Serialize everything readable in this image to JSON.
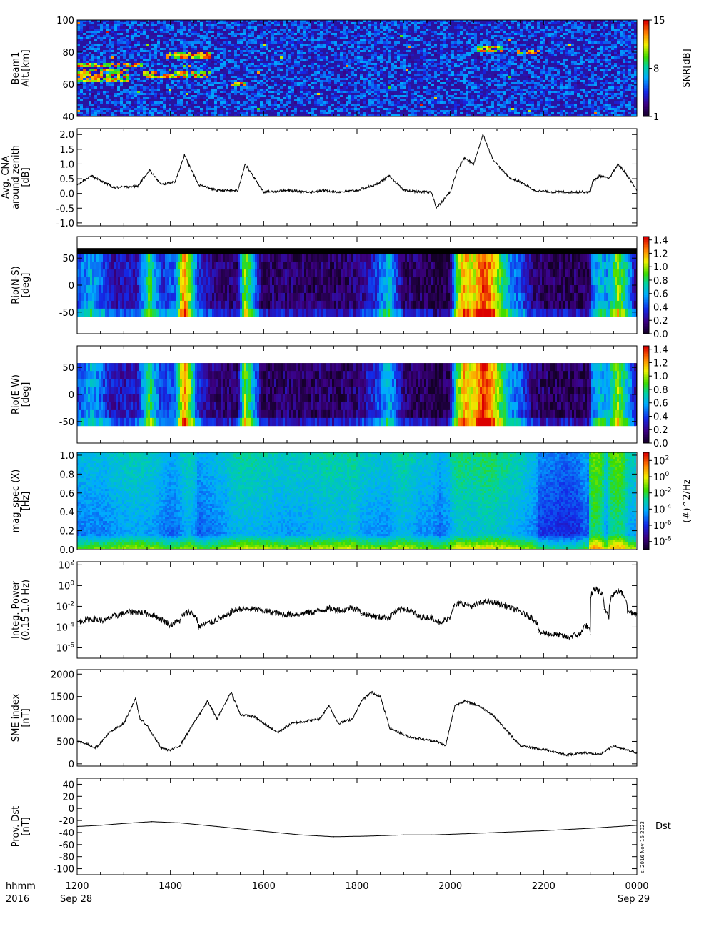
{
  "chart_data": [
    {
      "type": "heatmap",
      "ylabel_lines": [
        "Beam1",
        "Alt.[km]"
      ],
      "yticks": [
        "40",
        "60",
        "80",
        "100"
      ],
      "ylim": [
        40,
        100
      ],
      "colorbar": {
        "label": "SNR[dB]",
        "ticks": [
          "1",
          "8",
          "15"
        ],
        "range": [
          1,
          15
        ],
        "colormap": "rainbow"
      },
      "echo_layers": [
        {
          "t_start": 12.0,
          "t_end": 13.1,
          "alt_km": 63
        },
        {
          "t_start": 12.0,
          "t_end": 13.1,
          "alt_km": 67
        },
        {
          "t_start": 12.0,
          "t_end": 13.4,
          "alt_km": 72
        },
        {
          "t_start": 13.4,
          "t_end": 14.9,
          "alt_km": 66
        },
        {
          "t_start": 13.9,
          "t_end": 14.9,
          "alt_km": 78
        },
        {
          "t_start": 15.3,
          "t_end": 15.6,
          "alt_km": 60
        },
        {
          "t_start": 20.6,
          "t_end": 21.1,
          "alt_km": 82
        },
        {
          "t_start": 21.4,
          "t_end": 21.9,
          "alt_km": 80
        }
      ]
    },
    {
      "type": "line",
      "ylabel_lines": [
        "Avg. CNA",
        "around zenith",
        "[dB]"
      ],
      "yticks": [
        "-1.0",
        "-0.5",
        "0.0",
        "0.5",
        "1.0",
        "1.5",
        "2.0"
      ],
      "ylim": [
        -1.1,
        2.2
      ],
      "x": [
        12.0,
        12.3,
        12.8,
        13.3,
        13.55,
        13.8,
        14.1,
        14.3,
        14.6,
        15.0,
        15.3,
        15.45,
        15.6,
        16.0,
        16.5,
        17.0,
        17.3,
        17.6,
        18.0,
        18.4,
        18.7,
        19.0,
        19.4,
        19.6,
        19.7,
        20.0,
        20.15,
        20.3,
        20.5,
        20.7,
        20.9,
        21.1,
        21.3,
        21.5,
        21.8,
        22.2,
        22.6,
        23.0,
        23.05,
        23.2,
        23.4,
        23.6,
        23.8,
        24.0
      ],
      "y": [
        0.3,
        0.6,
        0.2,
        0.25,
        0.8,
        0.3,
        0.4,
        1.3,
        0.3,
        0.1,
        0.1,
        0.1,
        1.0,
        0.05,
        0.1,
        0.05,
        0.1,
        0.05,
        0.1,
        0.3,
        0.6,
        0.1,
        0.05,
        0.05,
        -0.5,
        0.05,
        0.8,
        1.2,
        1.0,
        2.0,
        1.2,
        0.8,
        0.5,
        0.4,
        0.1,
        0.05,
        0.05,
        0.05,
        0.4,
        0.6,
        0.5,
        1.0,
        0.6,
        0.1
      ]
    },
    {
      "type": "heatmap",
      "ylabel_lines": [
        "Rio(N-S)",
        "[deg]"
      ],
      "yticks": [
        "-50",
        "0",
        "50"
      ],
      "ylim": [
        -90,
        90
      ],
      "data_band": [
        -58,
        58
      ],
      "colorbar": {
        "ticks": [
          "0.0",
          "0.2",
          "0.4",
          "0.6",
          "0.8",
          "1.0",
          "1.2",
          "1.4"
        ],
        "range": [
          0,
          1.45
        ],
        "colormap": "rainbow-dark"
      },
      "x_profile": [
        12.0,
        12.3,
        12.8,
        13.3,
        13.55,
        13.8,
        14.1,
        14.3,
        14.6,
        15.0,
        15.3,
        15.45,
        15.6,
        16.0,
        16.5,
        17.0,
        17.3,
        17.6,
        18.0,
        18.4,
        18.7,
        19.0,
        19.4,
        19.6,
        19.7,
        20.0,
        20.15,
        20.3,
        20.5,
        20.7,
        20.9,
        21.1,
        21.3,
        21.5,
        21.8,
        22.2,
        22.6,
        23.0,
        23.05,
        23.2,
        23.4,
        23.6,
        23.8,
        24.0
      ],
      "intensity_profile": [
        0.4,
        0.6,
        0.25,
        0.3,
        0.85,
        0.35,
        0.45,
        1.3,
        0.35,
        0.15,
        0.15,
        0.15,
        1.0,
        0.1,
        0.15,
        0.1,
        0.15,
        0.1,
        0.15,
        0.35,
        0.65,
        0.15,
        0.1,
        0.1,
        0.0,
        0.1,
        0.85,
        1.2,
        1.05,
        1.4,
        1.2,
        0.85,
        0.55,
        0.45,
        0.15,
        0.1,
        0.1,
        0.1,
        0.45,
        0.65,
        0.55,
        1.0,
        0.65,
        0.2
      ]
    },
    {
      "type": "heatmap",
      "ylabel_lines": [
        "Rio(E-W)",
        "[deg]"
      ],
      "yticks": [
        "-50",
        "0",
        "50"
      ],
      "ylim": [
        -90,
        90
      ],
      "data_band": [
        -58,
        58
      ],
      "colorbar": {
        "ticks": [
          "0.0",
          "0.2",
          "0.4",
          "0.6",
          "0.8",
          "1.0",
          "1.2",
          "1.4"
        ],
        "range": [
          0,
          1.45
        ],
        "colormap": "rainbow-dark"
      }
    },
    {
      "type": "heatmap",
      "ylabel_lines": [
        "mag_spec (X)",
        "[Hz]"
      ],
      "yticks": [
        "0.0",
        "0.2",
        "0.4",
        "0.6",
        "0.8",
        "1.0"
      ],
      "ylim": [
        0,
        1.03
      ],
      "colorbar": {
        "label": "(#)^2/Hz",
        "ticks": [
          "10^-8",
          "10^-6",
          "10^-4",
          "10^-2",
          "10^0",
          "10^2"
        ],
        "tick_exponents": [
          -8,
          -6,
          -4,
          -2,
          0,
          2
        ],
        "range": [
          -9,
          3
        ],
        "colormap": "rainbow",
        "scale": "log"
      }
    },
    {
      "type": "line",
      "ylabel_lines": [
        "Integ. Power",
        "(0.15-1.0 Hz)"
      ],
      "yticks": [
        "10^-6",
        "10^-4",
        "10^-2",
        "10^0",
        "10^2"
      ],
      "tick_exponents": [
        -6,
        -4,
        -2,
        0,
        2
      ],
      "yscale": "log",
      "ylim_log10": [
        -7,
        2.3
      ],
      "x": [
        12.0,
        12.3,
        12.6,
        12.9,
        13.2,
        13.5,
        13.8,
        14.0,
        14.2,
        14.4,
        14.6,
        14.9,
        15.2,
        15.5,
        15.8,
        16.1,
        16.4,
        16.8,
        17.1,
        17.4,
        17.7,
        17.9,
        18.1,
        18.4,
        18.7,
        19.0,
        19.3,
        19.6,
        19.8,
        20.0,
        20.2,
        20.5,
        20.8,
        21.0,
        21.3,
        21.6,
        21.9,
        22.2,
        22.5,
        22.8,
        22.9,
        23.0,
        23.1,
        23.3,
        23.4,
        23.6,
        23.8,
        24.0
      ],
      "y": [
        0.0003,
        0.0006,
        0.0004,
        0.0015,
        0.003,
        0.002,
        0.0005,
        0.00015,
        0.0004,
        0.003,
        0.0001,
        0.0003,
        0.001,
        0.006,
        0.005,
        0.003,
        0.0015,
        0.002,
        0.003,
        0.006,
        0.004,
        0.008,
        0.002,
        0.001,
        0.0008,
        0.006,
        0.001,
        0.0008,
        0.00015,
        0.001,
        0.02,
        0.01,
        0.03,
        0.02,
        0.006,
        0.0015,
        3e-05,
        2e-05,
        1e-05,
        2e-05,
        0.00015,
        2e-05,
        0.5,
        0.005,
        0.001,
        0.3,
        0.003,
        0.002
      ]
    },
    {
      "type": "line",
      "ylabel_lines": [
        "SME index",
        "[nT]"
      ],
      "yticks": [
        "0",
        "500",
        "1000",
        "1500",
        "2000"
      ],
      "ylim": [
        -50,
        2100
      ],
      "x": [
        12.0,
        12.2,
        12.4,
        12.7,
        13.0,
        13.25,
        13.35,
        13.5,
        13.8,
        14.0,
        14.2,
        14.5,
        14.8,
        15.0,
        15.3,
        15.5,
        15.8,
        16.0,
        16.3,
        16.6,
        16.9,
        17.2,
        17.4,
        17.6,
        17.9,
        18.1,
        18.3,
        18.5,
        18.7,
        18.9,
        19.1,
        19.4,
        19.7,
        19.9,
        20.1,
        20.3,
        20.6,
        20.9,
        21.2,
        21.5,
        21.8,
        22.1,
        22.5,
        22.9,
        23.2,
        23.5,
        23.8,
        24.0
      ],
      "y": [
        500,
        450,
        350,
        700,
        900,
        1450,
        1000,
        850,
        350,
        300,
        400,
        900,
        1400,
        1000,
        1600,
        1100,
        1050,
        900,
        700,
        900,
        950,
        1000,
        1300,
        900,
        1000,
        1400,
        1600,
        1500,
        800,
        700,
        600,
        550,
        500,
        400,
        1300,
        1400,
        1300,
        1100,
        750,
        400,
        350,
        300,
        200,
        250,
        200,
        400,
        300,
        250
      ]
    },
    {
      "type": "line",
      "ylabel_lines": [
        "Prov. Dst",
        "[nT]"
      ],
      "yticks": [
        "-100",
        "-80",
        "-60",
        "-40",
        "-20",
        "0",
        "20",
        "40"
      ],
      "ylim": [
        -110,
        50
      ],
      "x": [
        12.0,
        12.5,
        13.0,
        13.6,
        14.2,
        15.0,
        16.0,
        16.8,
        17.5,
        18.2,
        19.0,
        19.6,
        20.0,
        21.0,
        22.0,
        23.0,
        24.0
      ],
      "y": [
        -30,
        -28,
        -25,
        -22,
        -24,
        -30,
        -38,
        -44,
        -47,
        -46,
        -44,
        -44,
        -43,
        -40,
        -37,
        -33,
        -28
      ],
      "series_label": "Dst",
      "side_note": "s. 2016 Nov 16 2023"
    }
  ],
  "x_axis": {
    "range": [
      12,
      24
    ],
    "tick_hours": [
      12,
      14,
      16,
      18,
      20,
      22,
      24
    ],
    "tick_labels": [
      "1200",
      "1400",
      "1600",
      "1800",
      "2000",
      "2200",
      "0000"
    ],
    "row_label_1": "hhmm",
    "row_label_2": "2016",
    "date_start": "Sep 28",
    "date_end": "Sep 29"
  }
}
